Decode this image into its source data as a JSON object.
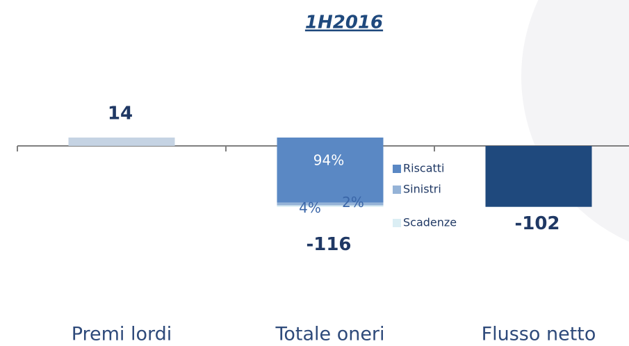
{
  "chart_data": {
    "type": "waterfall",
    "title": "1H2016",
    "categories": [
      "Premi lordi",
      "Totale oneri",
      "Flusso netto"
    ],
    "values": [
      14,
      -116,
      -102
    ],
    "colors": [
      "#c5d3e3",
      null,
      "#1f497d"
    ],
    "breakdown": {
      "category": "Totale oneri",
      "series": [
        {
          "name": "Riscatti",
          "color": "#5a88c4",
          "values": [
            94
          ],
          "value_labels": [
            "94%"
          ]
        },
        {
          "name": "Sinistri",
          "color": "#95b3d7",
          "values": [
            4
          ],
          "value_labels": [
            "4%"
          ]
        },
        {
          "name": "Scadenze",
          "color": "#dbeef4",
          "values": [
            2
          ],
          "value_labels": [
            "2%"
          ]
        }
      ]
    },
    "legend": "inside-right"
  }
}
